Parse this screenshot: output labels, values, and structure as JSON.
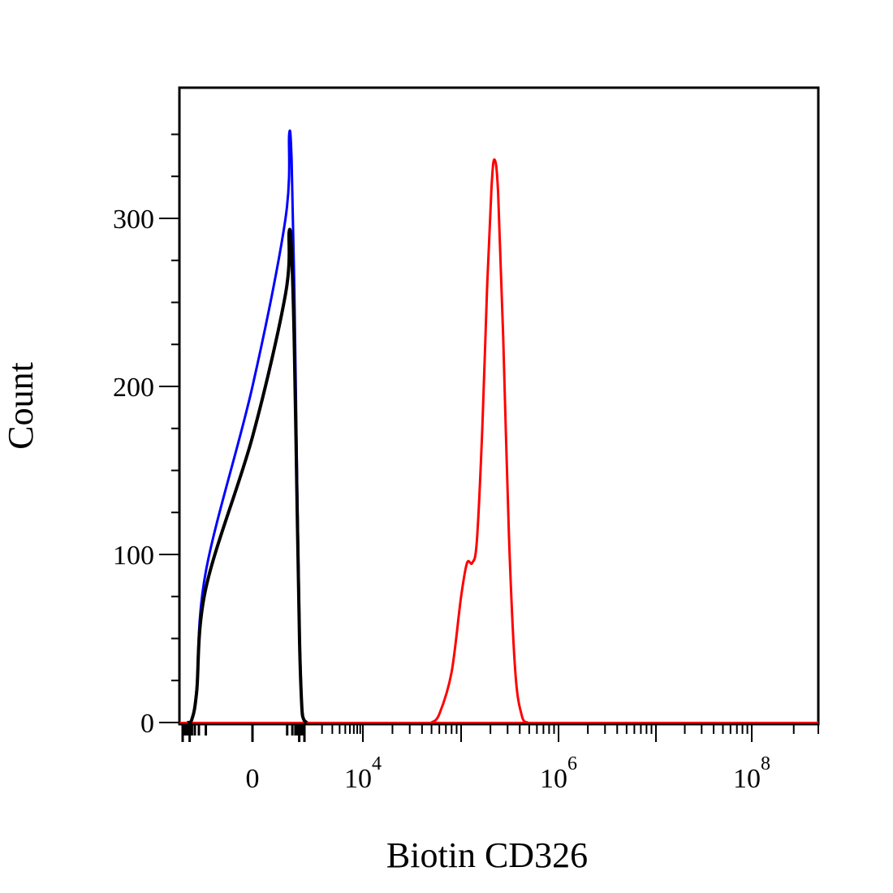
{
  "chart_data": {
    "type": "area",
    "title": "",
    "xlabel": "Biotin CD326",
    "ylabel": "Count",
    "ylim": [
      0,
      375
    ],
    "x_scale": "biexponential (linear near 0, log10 above)",
    "x_tick_labels": [
      {
        "value": 0,
        "base": "0",
        "exp": ""
      },
      {
        "value": 10000,
        "base": "10",
        "exp": "4"
      },
      {
        "value": 1000000,
        "base": "10",
        "exp": "6"
      },
      {
        "value": 100000000,
        "base": "10",
        "exp": "8"
      }
    ],
    "y_ticks": [
      {
        "value": 0,
        "label": "0"
      },
      {
        "value": 100,
        "label": "100"
      },
      {
        "value": 200,
        "label": "200"
      },
      {
        "value": 300,
        "label": "300"
      }
    ],
    "grid": false,
    "legend": "none",
    "series": [
      {
        "color": "#0000ff",
        "points": [
          [
            -600,
            0
          ],
          [
            -400,
            2
          ],
          [
            -250,
            20
          ],
          [
            -100,
            90
          ],
          [
            0,
            200
          ],
          [
            80,
            300
          ],
          [
            130,
            350
          ],
          [
            180,
            335
          ],
          [
            260,
            260
          ],
          [
            380,
            140
          ],
          [
            520,
            55
          ],
          [
            700,
            12
          ],
          [
            900,
            2
          ],
          [
            1100,
            0
          ]
        ]
      },
      {
        "color": "#000000",
        "points": [
          [
            -600,
            0
          ],
          [
            -400,
            2
          ],
          [
            -250,
            18
          ],
          [
            -100,
            80
          ],
          [
            0,
            170
          ],
          [
            80,
            255
          ],
          [
            130,
            292
          ],
          [
            180,
            280
          ],
          [
            260,
            225
          ],
          [
            380,
            125
          ],
          [
            520,
            48
          ],
          [
            700,
            10
          ],
          [
            900,
            2
          ],
          [
            1100,
            0
          ]
        ]
      },
      {
        "color": "#ff0000",
        "points": [
          [
            50000,
            0
          ],
          [
            60000,
            5
          ],
          [
            80000,
            30
          ],
          [
            100000,
            75
          ],
          [
            115000,
            95
          ],
          [
            130000,
            95
          ],
          [
            145000,
            108
          ],
          [
            165000,
            175
          ],
          [
            185000,
            260
          ],
          [
            205000,
            318
          ],
          [
            220000,
            335
          ],
          [
            240000,
            315
          ],
          [
            270000,
            230
          ],
          [
            310000,
            110
          ],
          [
            360000,
            30
          ],
          [
            420000,
            4
          ],
          [
            480000,
            0
          ]
        ]
      }
    ]
  }
}
